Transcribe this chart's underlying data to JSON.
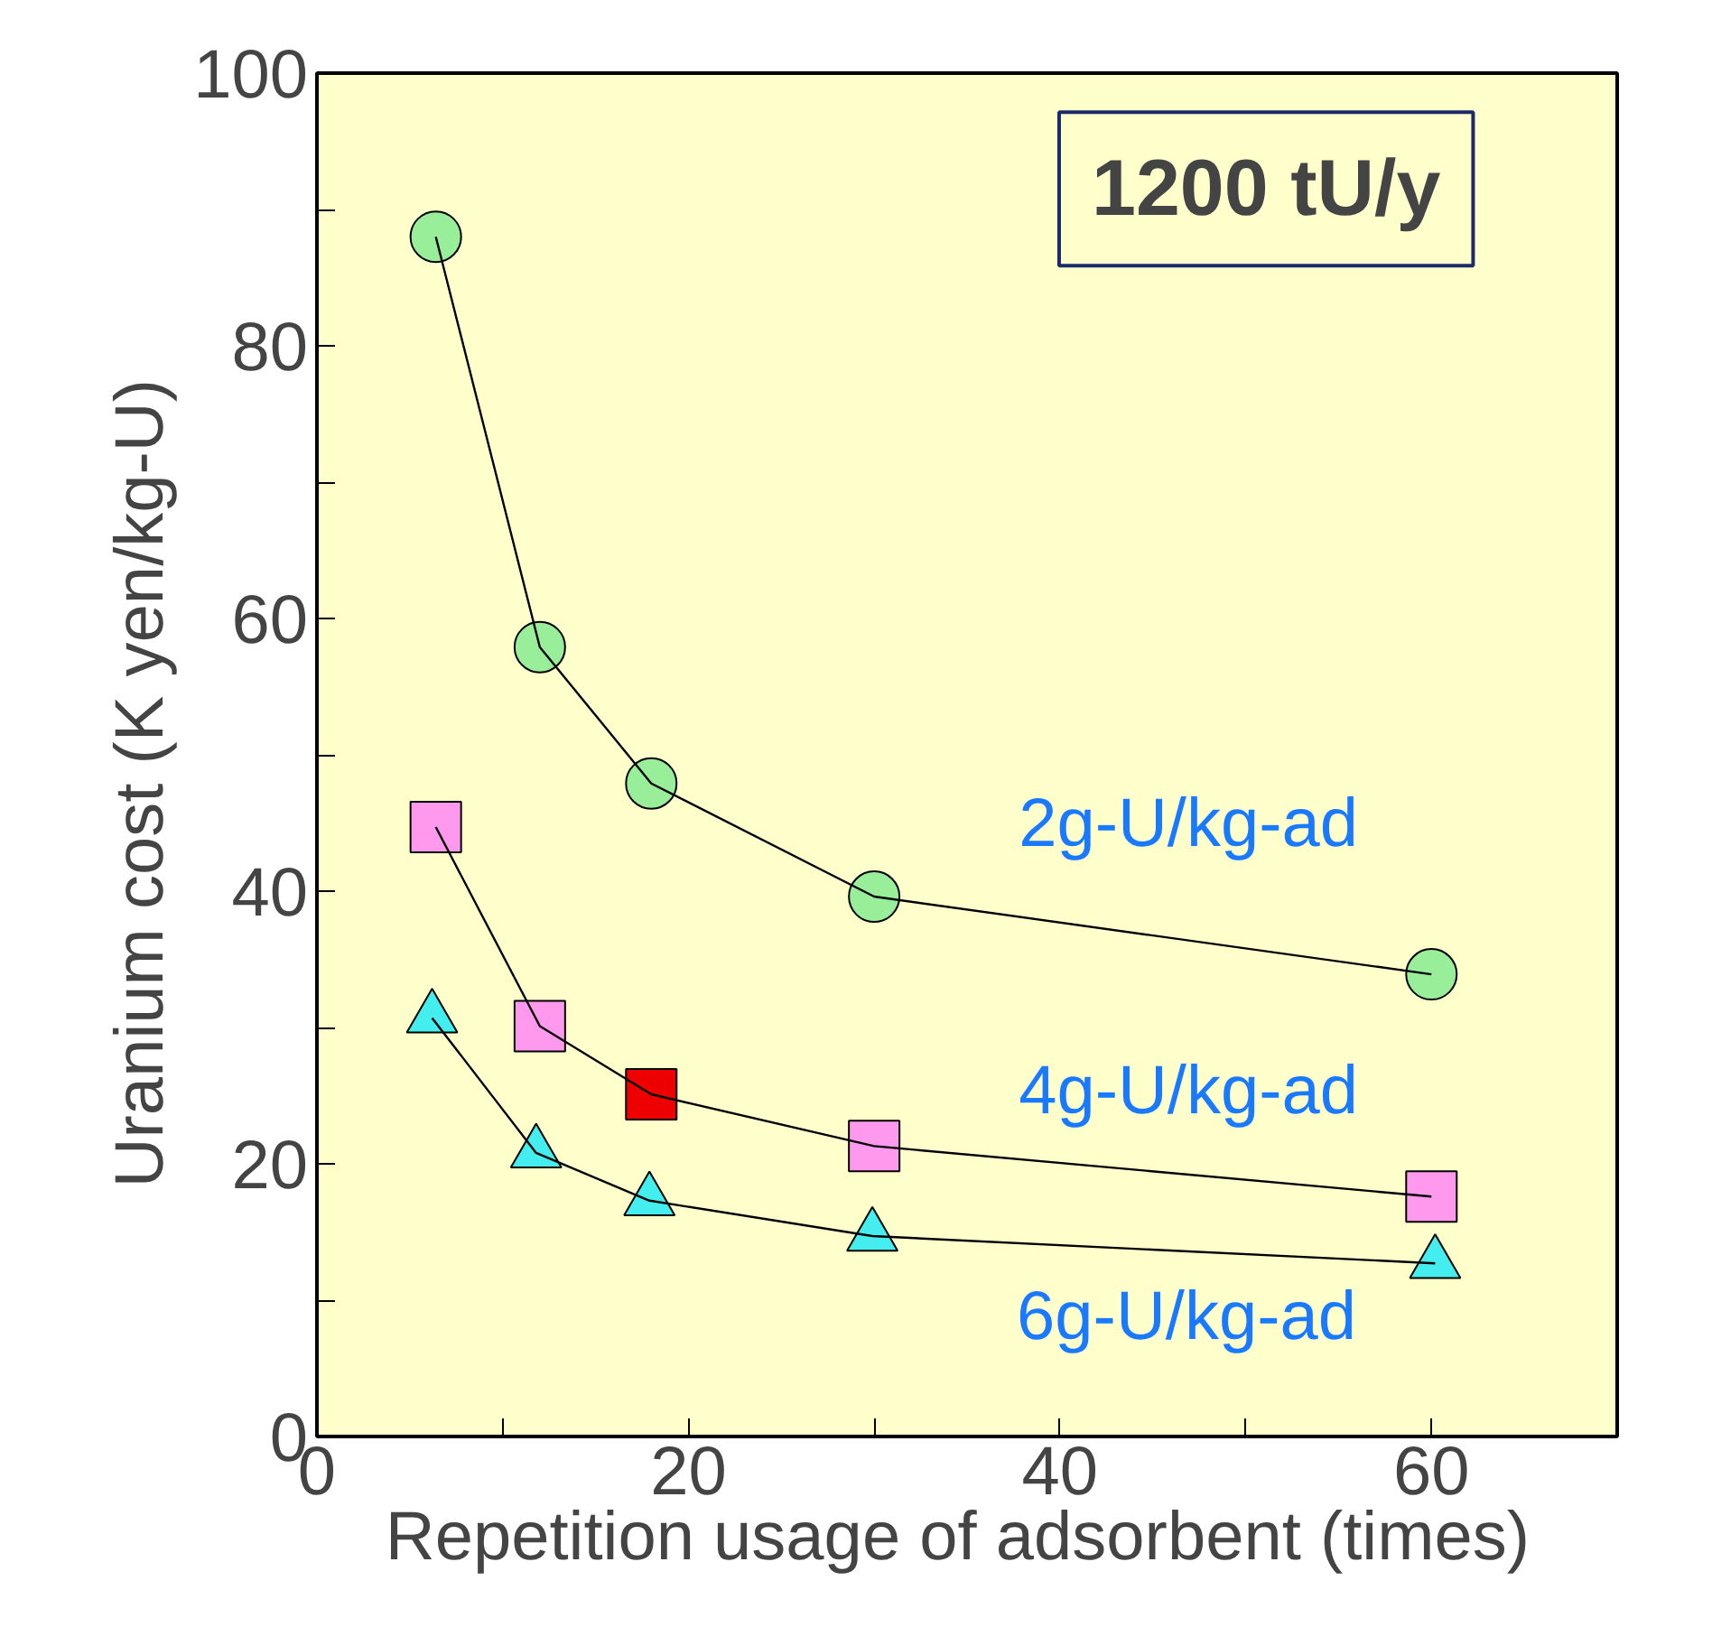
{
  "chart_data": {
    "type": "line",
    "title": "1200 tU/y",
    "xlabel": "Repetition usage of adsorbent  (times)",
    "ylabel": "Uranium cost    (K yen/kg-U)",
    "xlim": [
      0,
      70
    ],
    "ylim": [
      0,
      100
    ],
    "xticks": [
      0,
      {
        "value": 10,
        "label": null
      },
      20,
      {
        "value": 30,
        "label": null
      },
      40,
      {
        "value": 50,
        "label": null
      },
      60
    ],
    "yticks": [
      0,
      {
        "value": 10,
        "label": null
      },
      20,
      {
        "value": 30,
        "label": null
      },
      40,
      {
        "value": 50,
        "label": null
      },
      60,
      {
        "value": 70,
        "label": null
      },
      80,
      {
        "value": 90,
        "label": null
      },
      100
    ],
    "grid": false,
    "series": [
      {
        "name": "2g-U/kg-ad",
        "color": "#99ee99",
        "marker": "circle",
        "x": [
          6.4,
          12,
          18,
          30,
          60
        ],
        "values": [
          88,
          57.9,
          47.9,
          39.6,
          33.9
        ]
      },
      {
        "name": "4g-U/kg-ad",
        "color": "#ff99ee",
        "colors": [
          "#ff99ee",
          "#ff99ee",
          "#ee0000",
          "#ff99ee",
          "#ff99ee"
        ],
        "marker": "square",
        "x": [
          6.4,
          12,
          18,
          30,
          60
        ],
        "values": [
          44.7,
          30.1,
          25.1,
          21.3,
          17.6
        ]
      },
      {
        "name": "6g-U/kg-ad",
        "color": "#44eeee",
        "marker": "triangle",
        "x": [
          6.2,
          11.8,
          17.9,
          29.9,
          60.2
        ],
        "values": [
          30.7,
          20.8,
          17.3,
          14.7,
          12.7
        ]
      }
    ]
  }
}
